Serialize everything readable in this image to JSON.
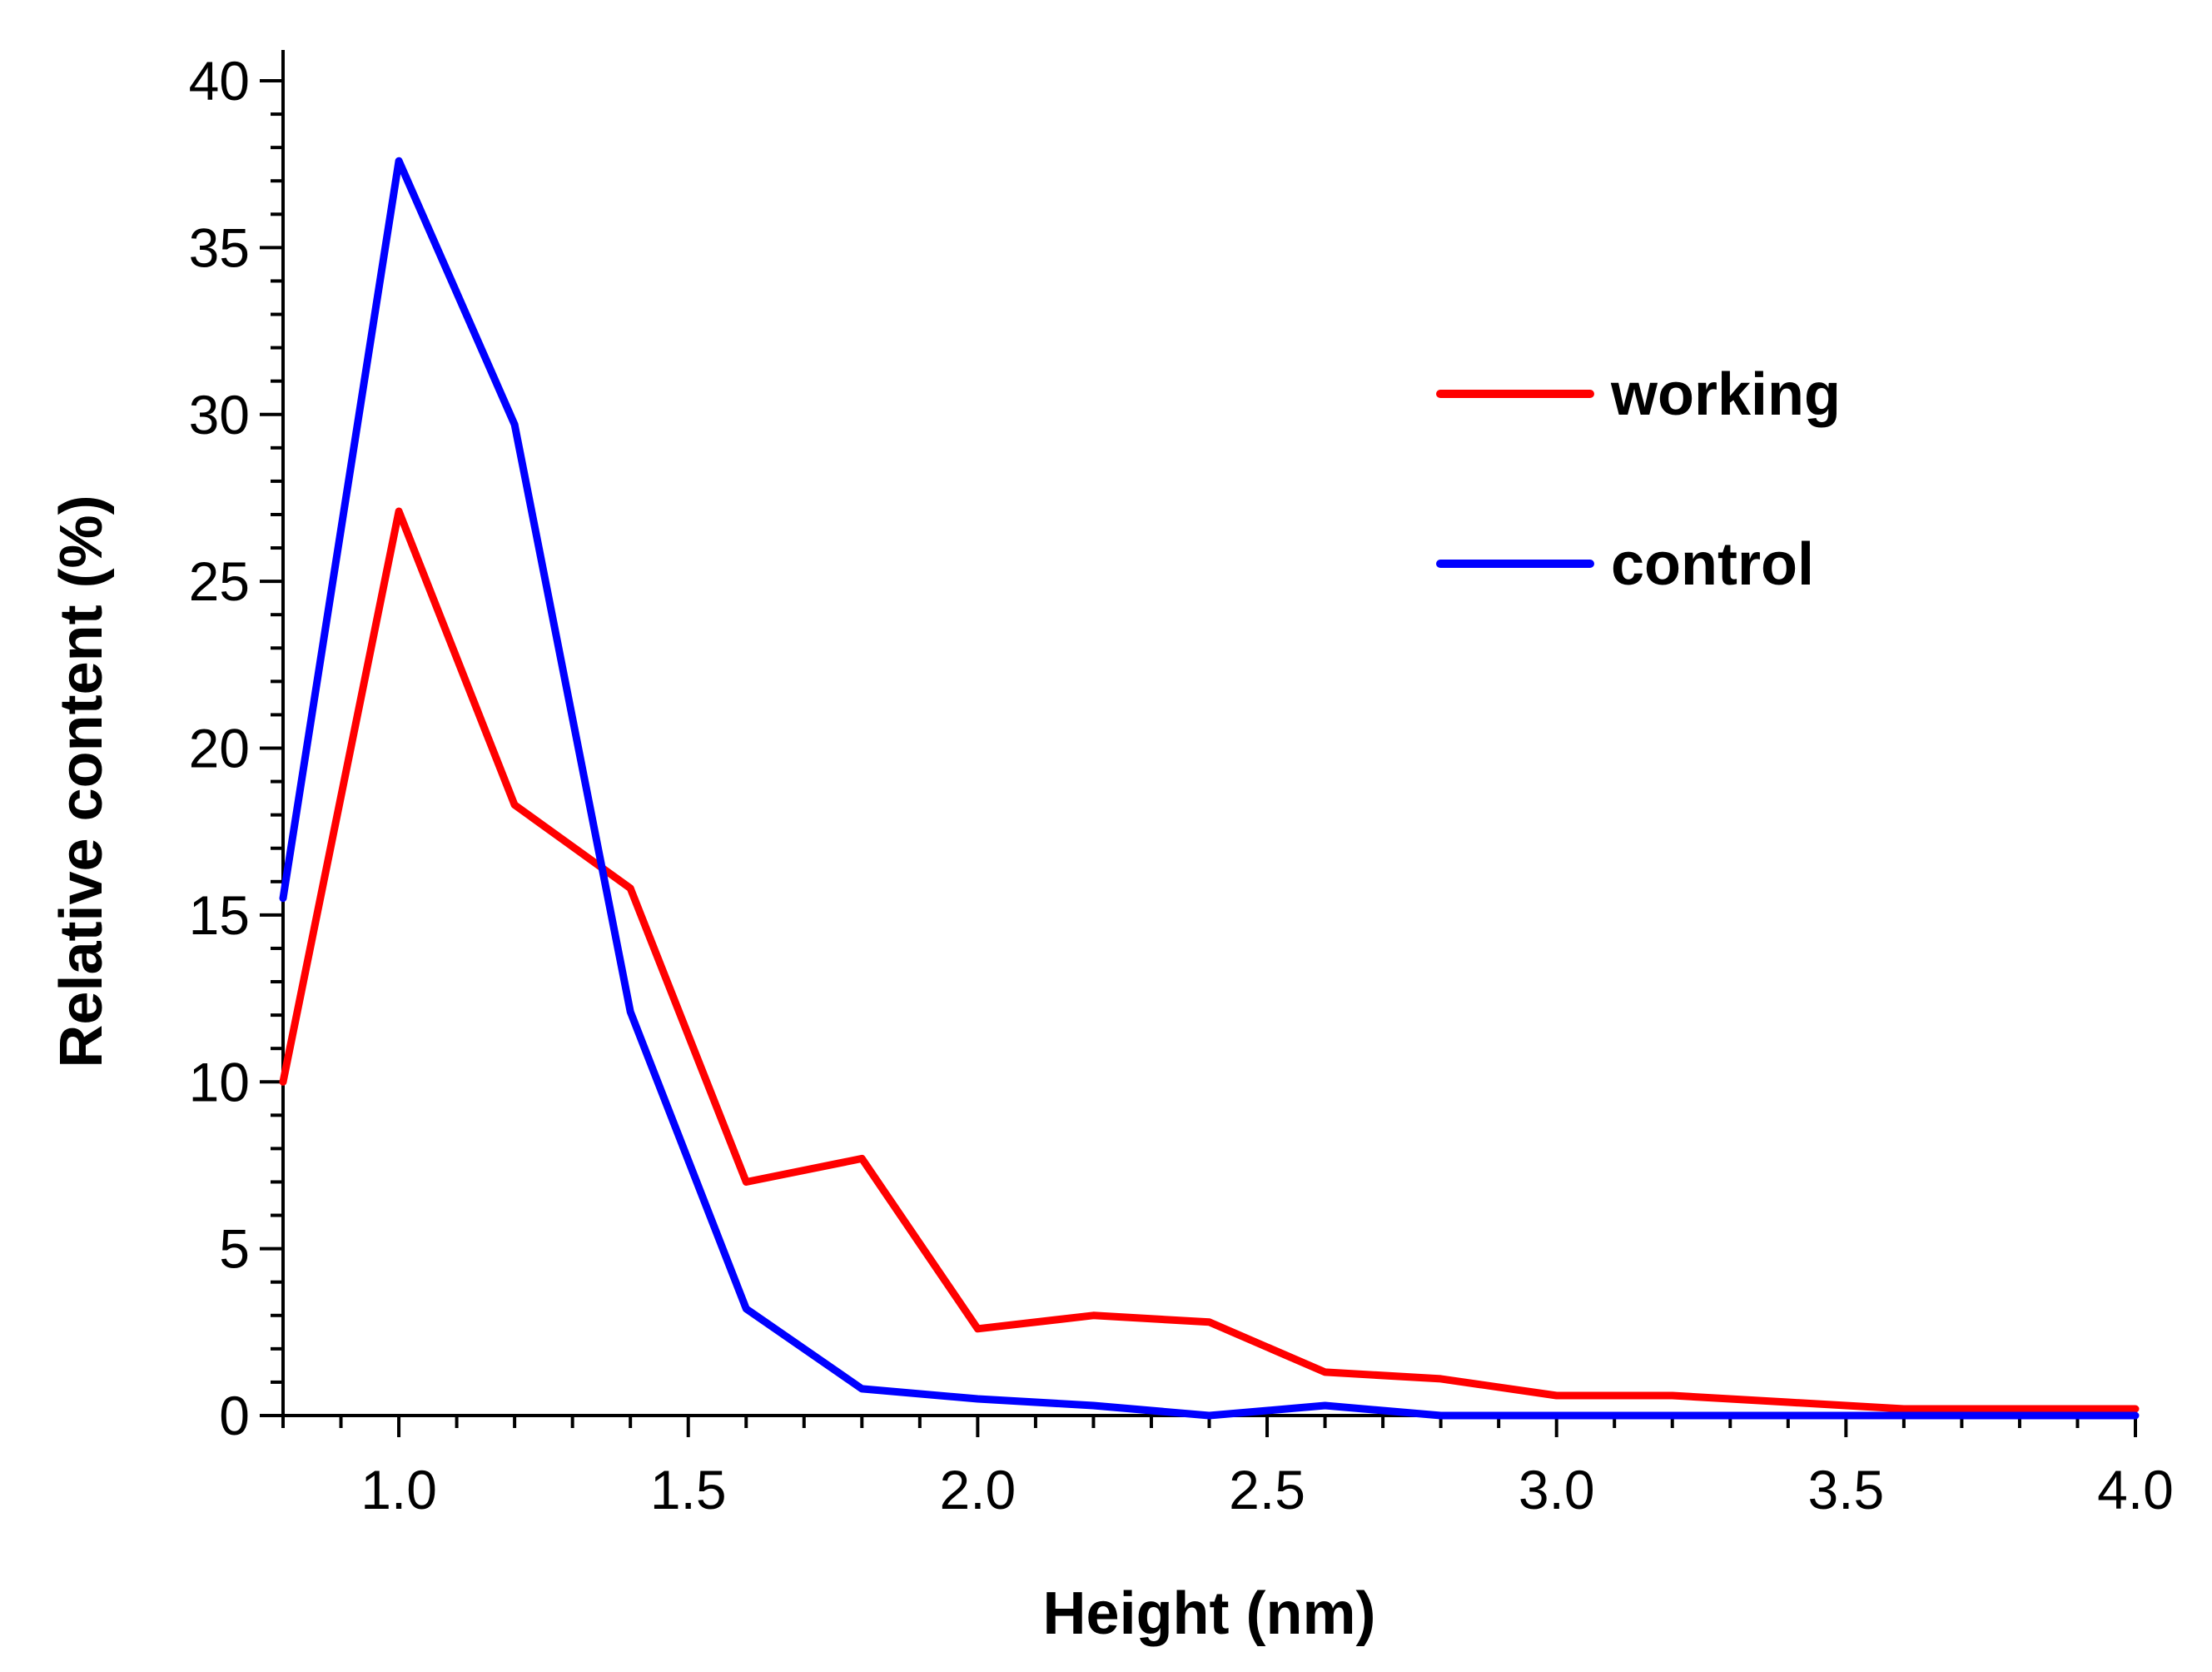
{
  "chart_data": {
    "type": "line",
    "title": "",
    "xlabel": "Height (nm)",
    "ylabel": "Relative content (%)",
    "xlim": [
      0.8,
      4.0
    ],
    "ylim": [
      0,
      40
    ],
    "x_ticks": [
      1.0,
      1.5,
      2.0,
      2.5,
      3.0,
      3.5,
      4.0
    ],
    "x_tick_labels": [
      "1.0",
      "1.5",
      "2.0",
      "2.5",
      "3.0",
      "3.5",
      "4.0"
    ],
    "x_minor_step": 0.1,
    "y_ticks": [
      0,
      5,
      10,
      15,
      20,
      25,
      30,
      35,
      40
    ],
    "y_tick_labels": [
      "0",
      "5",
      "10",
      "15",
      "20",
      "25",
      "30",
      "35",
      "40"
    ],
    "y_minor_step": 1,
    "grid": false,
    "legend_position": "top-right",
    "series": [
      {
        "name": "working",
        "color": "#ff0000",
        "x": [
          0.8,
          1.0,
          1.2,
          1.4,
          1.6,
          1.8,
          2.0,
          2.2,
          2.4,
          2.6,
          2.8,
          3.0,
          3.2,
          3.4,
          3.6,
          3.8,
          4.0
        ],
        "y": [
          10.0,
          27.1,
          18.3,
          15.8,
          7.0,
          7.7,
          2.6,
          3.0,
          2.8,
          1.3,
          1.1,
          0.6,
          0.6,
          0.4,
          0.2,
          0.2,
          0.2
        ]
      },
      {
        "name": "control",
        "color": "#0000ff",
        "x": [
          0.8,
          1.0,
          1.2,
          1.4,
          1.6,
          1.8,
          2.0,
          2.2,
          2.4,
          2.6,
          2.8,
          3.0,
          3.2,
          3.4,
          3.6,
          3.8,
          4.0
        ],
        "y": [
          15.5,
          37.6,
          29.7,
          12.1,
          3.2,
          0.8,
          0.5,
          0.3,
          0.0,
          0.3,
          0.0,
          0.0,
          0.0,
          0.0,
          0.0,
          0.0,
          0.0
        ]
      }
    ]
  }
}
